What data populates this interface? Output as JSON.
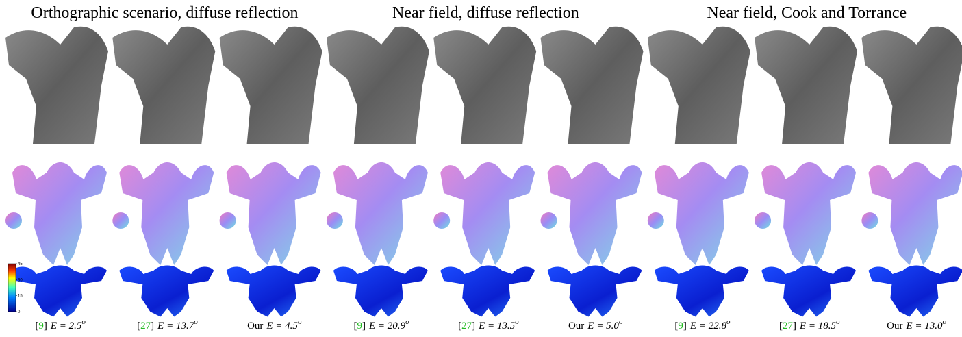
{
  "groups": [
    {
      "title": "Orthographic scenario, diffuse reflection"
    },
    {
      "title": "Near field, diffuse reflection"
    },
    {
      "title": "Near field, Cook and Torrance"
    }
  ],
  "columns": [
    {
      "pre": "[",
      "ref": "9",
      "post": "]",
      "metric": "E = 2.5",
      "sup": "o"
    },
    {
      "pre": "[",
      "ref": "27",
      "post": "]",
      "metric": "E = 13.7",
      "sup": "o"
    },
    {
      "pre": "Our",
      "metric": "E = 4.5",
      "sup": "o"
    },
    {
      "pre": "[",
      "ref": "9",
      "post": "]",
      "metric": "E = 20.9",
      "sup": "o"
    },
    {
      "pre": "[",
      "ref": "27",
      "post": "]",
      "metric": "E = 13.5",
      "sup": "o"
    },
    {
      "pre": "Our",
      "metric": "E = 5.0",
      "sup": "o"
    },
    {
      "pre": "[",
      "ref": "9",
      "post": "]",
      "metric": "E = 22.8",
      "sup": "o"
    },
    {
      "pre": "[",
      "ref": "27",
      "post": "]",
      "metric": "E = 18.5",
      "sup": "o"
    },
    {
      "pre": "Our",
      "metric": "E = 13.0",
      "sup": "o"
    }
  ],
  "colorbar": {
    "ticks": [
      0,
      15,
      30,
      45
    ]
  }
}
